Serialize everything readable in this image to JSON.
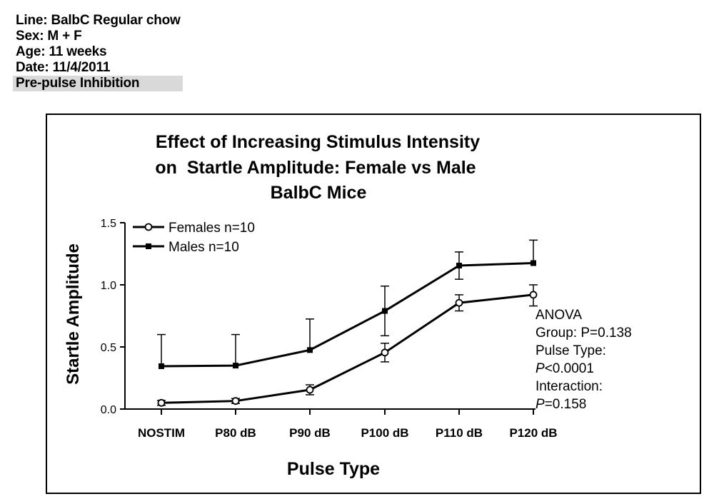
{
  "header": {
    "line": "Line: BalbC Regular chow",
    "sex": "Sex: M + F",
    "age": "Age: 11 weeks",
    "date": "Date: 11/4/2011",
    "test": "Pre-pulse Inhibition"
  },
  "colors": {
    "highlight": "#d9d9d9",
    "ink": "#000000"
  },
  "chart_data": {
    "type": "line",
    "title_lines": [
      "Effect of Increasing Stimulus Intensity",
      "on  Startle Amplitude: Female vs Male",
      "BalbC Mice"
    ],
    "xlabel": "Pulse Type",
    "ylabel": "Startle Amplitude",
    "categories": [
      "NOSTIM",
      "P80 dB",
      "P90 dB",
      "P100 dB",
      "P110 dB",
      "P120 dB"
    ],
    "ylim": [
      0,
      1.5
    ],
    "yticks": [
      0.0,
      0.5,
      1.0,
      1.5
    ],
    "ytick_labels": [
      "0.0",
      "0.5",
      "1.0",
      "1.5"
    ],
    "legend_position": "top-left",
    "series": [
      {
        "name": "Females n=10",
        "marker": "open-circle",
        "values": [
          0.05,
          0.065,
          0.155,
          0.455,
          0.855,
          0.92
        ],
        "err_upper": [
          0.02,
          0.02,
          0.04,
          0.075,
          0.065,
          0.08
        ],
        "err_lower": [
          0.02,
          0.02,
          0.04,
          0.075,
          0.065,
          0.09
        ]
      },
      {
        "name": "Males n=10",
        "marker": "filled-square",
        "values": [
          0.345,
          0.35,
          0.475,
          0.79,
          1.155,
          1.175
        ],
        "err_upper": [
          0.255,
          0.25,
          0.25,
          0.2,
          0.11,
          0.185
        ],
        "err_lower": [
          0.0,
          0.0,
          0.0,
          0.2,
          0.11,
          0.0
        ]
      }
    ],
    "annotation": {
      "title": "ANOVA",
      "group": "Group: P=0.138",
      "pulse_label": "Pulse Type:",
      "pulse_p_letter": "P",
      "pulse_p_rest": "<0.0001",
      "interaction_label": "Interaction:",
      "interaction_p_letter": "P",
      "interaction_p_rest": "=0.158"
    }
  }
}
